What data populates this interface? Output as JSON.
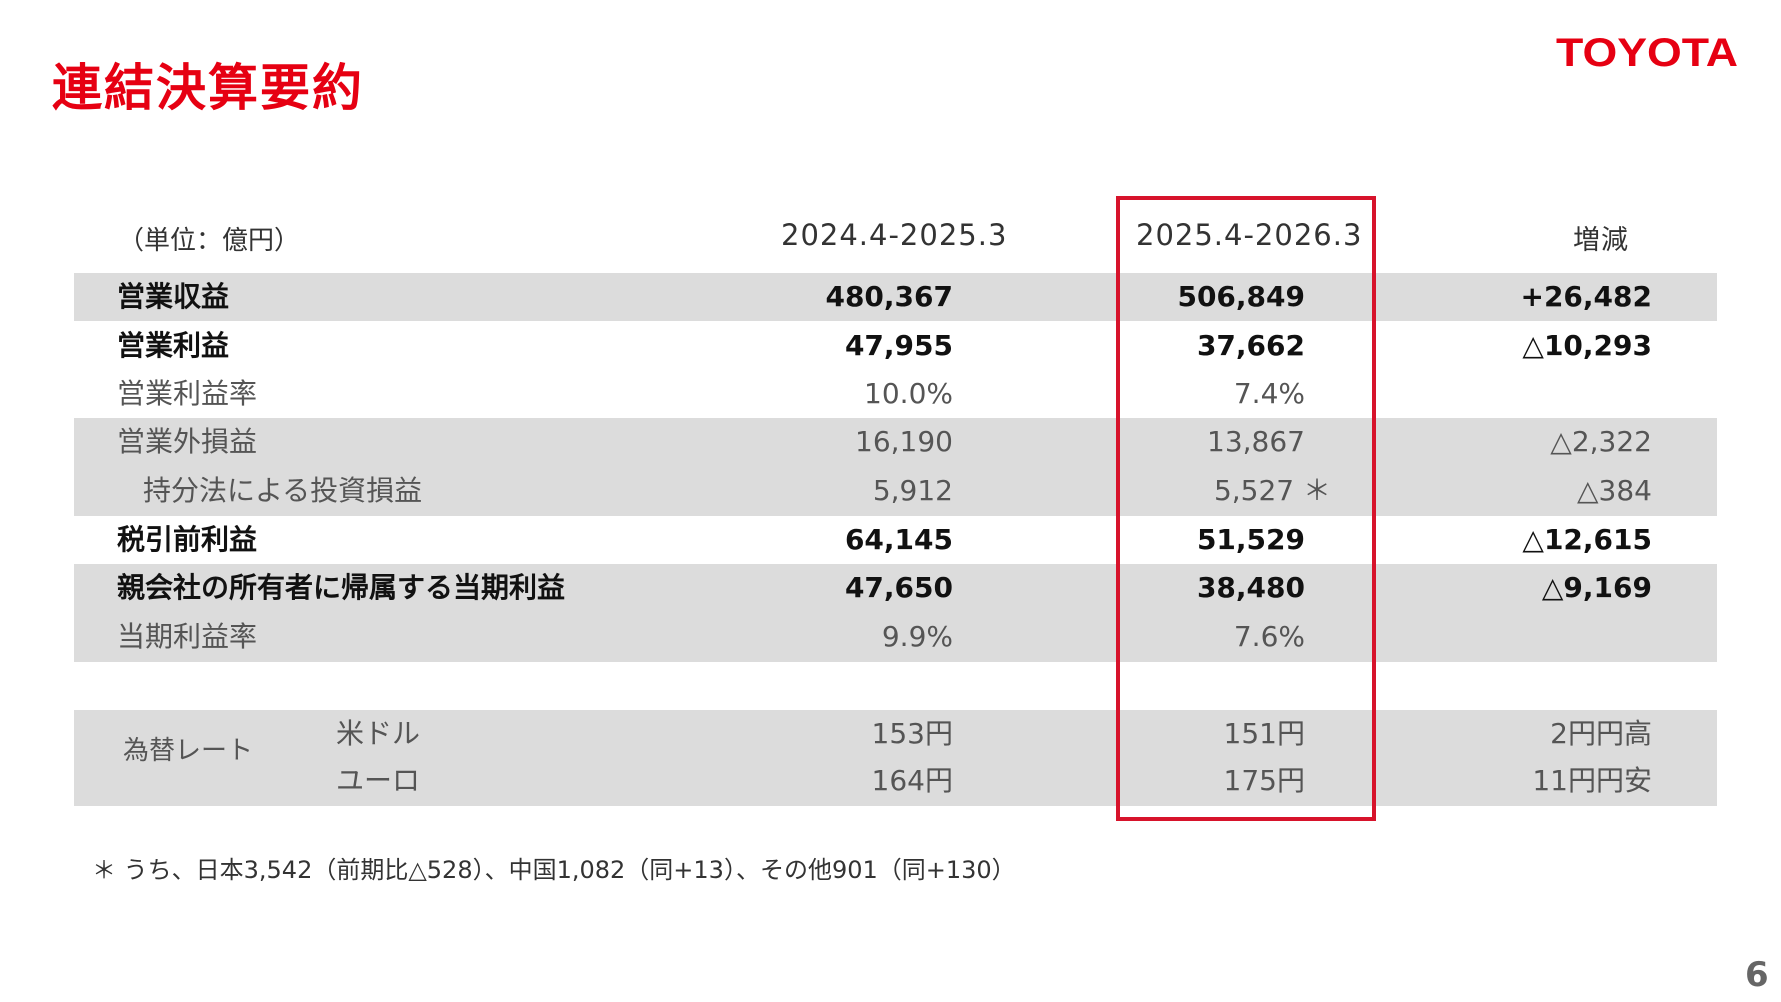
{
  "title": "連結決算要約",
  "logo_text": "TOYOTA",
  "page_number": "6",
  "unit": "（単位：億円）",
  "columns": [
    "2024.4-2025.3",
    "2025.4-2026.3",
    "増減"
  ],
  "rows": [
    {
      "label": "営業収益",
      "v1": "480,367",
      "v2": "506,849",
      "v3": "+26,482"
    },
    {
      "label": "営業利益",
      "v1": "47,955",
      "v2": "37,662",
      "v3": "△10,293"
    },
    {
      "label": "営業利益率",
      "v1": "10.0%",
      "v2": "7.4%",
      "v3": ""
    },
    {
      "label": "営業外損益",
      "v1": "16,190",
      "v2": "13,867",
      "v3": "△2,322"
    },
    {
      "label": "持分法による投資損益",
      "v1": "5,912",
      "v2": "5,527 ＊",
      "v3": "△384"
    },
    {
      "label": "税引前利益",
      "v1": "64,145",
      "v2": "51,529",
      "v3": "△12,615"
    },
    {
      "label": "親会社の所有者に帰属する当期利益",
      "v1": "47,650",
      "v2": "38,480",
      "v3": "△9,169"
    },
    {
      "label": "当期利益率",
      "v1": "9.9%",
      "v2": "7.6%",
      "v3": ""
    }
  ],
  "fx": {
    "label": "為替レート",
    "rows": [
      {
        "label": "米ドル",
        "v1": "153円",
        "v2": "151円",
        "v3": "2円円高"
      },
      {
        "label": "ユーロ",
        "v1": "164円",
        "v2": "175円",
        "v3": "11円円安"
      }
    ]
  },
  "footnote": "＊ うち、日本3,542（前期比△528）、中国1,082（同+13）、その他901（同+130）"
}
